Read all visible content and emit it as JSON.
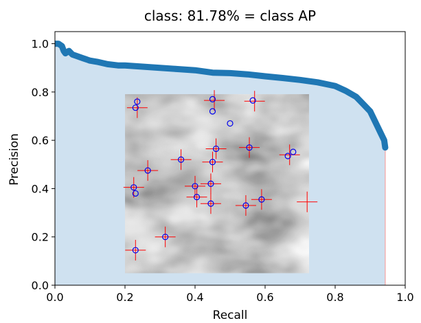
{
  "chart_data": {
    "type": "area",
    "title": "class: 81.78% = class AP",
    "xlabel": "Recall",
    "ylabel": "Precision",
    "xlim": [
      0.0,
      1.0
    ],
    "ylim": [
      0.0,
      1.05
    ],
    "x_ticks": [
      0.0,
      0.2,
      0.4,
      0.6,
      0.8,
      1.0
    ],
    "x_tick_labels": [
      "0.0",
      "0.2",
      "0.4",
      "0.6",
      "0.8",
      "1.0"
    ],
    "y_ticks": [
      0.0,
      0.2,
      0.4,
      0.6,
      0.8,
      1.0
    ],
    "y_tick_labels": [
      "0.0",
      "0.2",
      "0.4",
      "0.6",
      "0.8",
      "1.0"
    ],
    "grid": false,
    "series": [
      {
        "x": [
          0.0,
          0.01,
          0.02,
          0.025,
          0.03,
          0.04,
          0.05,
          0.06,
          0.08,
          0.1,
          0.12,
          0.15,
          0.18,
          0.2,
          0.25,
          0.3,
          0.35,
          0.4,
          0.45,
          0.5,
          0.55,
          0.6,
          0.65,
          0.7,
          0.75,
          0.8,
          0.83,
          0.86,
          0.88,
          0.9,
          0.91,
          0.92,
          0.93,
          0.94,
          0.943
        ],
        "y": [
          1.0,
          1.0,
          0.99,
          0.97,
          0.96,
          0.97,
          0.955,
          0.95,
          0.94,
          0.93,
          0.925,
          0.915,
          0.91,
          0.91,
          0.905,
          0.9,
          0.895,
          0.89,
          0.88,
          0.878,
          0.873,
          0.865,
          0.858,
          0.85,
          0.84,
          0.825,
          0.805,
          0.78,
          0.75,
          0.72,
          0.69,
          0.66,
          0.63,
          0.6,
          0.57
        ]
      }
    ],
    "colors": {
      "line": "#1f77b4",
      "fill": "#cfe1f0",
      "drop_line": "#f4a3a3",
      "marker_cross": "#ff0000",
      "marker_circle": "#0000ee"
    },
    "inset_image": {
      "extent_x": [
        0.2,
        0.725
      ],
      "extent_y": [
        0.05,
        0.79
      ],
      "crosses": [
        [
          0.235,
          0.735
        ],
        [
          0.455,
          0.765
        ],
        [
          0.57,
          0.762
        ],
        [
          0.225,
          0.405
        ],
        [
          0.265,
          0.475
        ],
        [
          0.36,
          0.52
        ],
        [
          0.45,
          0.51
        ],
        [
          0.46,
          0.565
        ],
        [
          0.555,
          0.57
        ],
        [
          0.67,
          0.54
        ],
        [
          0.4,
          0.41
        ],
        [
          0.405,
          0.365
        ],
        [
          0.445,
          0.42
        ],
        [
          0.445,
          0.338
        ],
        [
          0.545,
          0.33
        ],
        [
          0.59,
          0.355
        ],
        [
          0.72,
          0.345
        ],
        [
          0.315,
          0.2
        ],
        [
          0.23,
          0.145
        ]
      ],
      "circles": [
        [
          0.235,
          0.76
        ],
        [
          0.23,
          0.735
        ],
        [
          0.45,
          0.77
        ],
        [
          0.45,
          0.72
        ],
        [
          0.5,
          0.67
        ],
        [
          0.565,
          0.765
        ],
        [
          0.225,
          0.405
        ],
        [
          0.23,
          0.38
        ],
        [
          0.265,
          0.475
        ],
        [
          0.36,
          0.52
        ],
        [
          0.45,
          0.51
        ],
        [
          0.46,
          0.565
        ],
        [
          0.555,
          0.57
        ],
        [
          0.665,
          0.535
        ],
        [
          0.68,
          0.552
        ],
        [
          0.4,
          0.41
        ],
        [
          0.405,
          0.365
        ],
        [
          0.445,
          0.42
        ],
        [
          0.445,
          0.338
        ],
        [
          0.545,
          0.33
        ],
        [
          0.59,
          0.355
        ],
        [
          0.315,
          0.2
        ],
        [
          0.23,
          0.145
        ]
      ]
    }
  }
}
